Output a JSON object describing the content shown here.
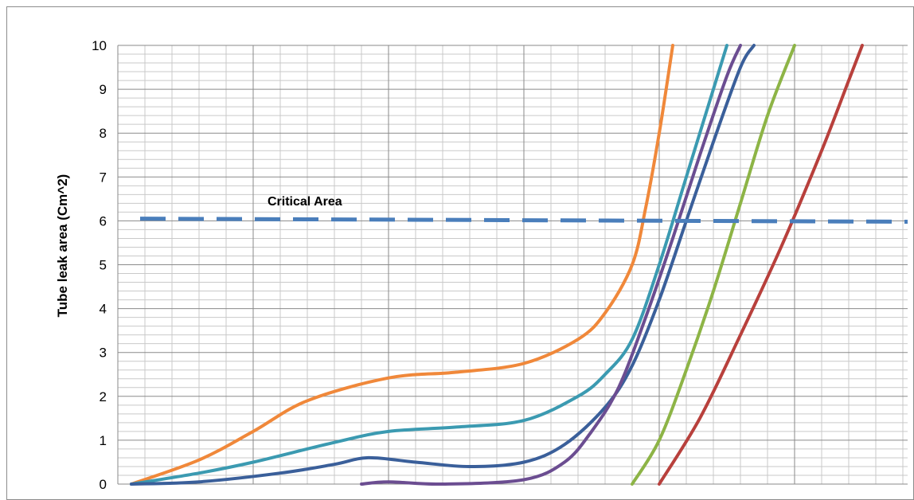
{
  "chart_data": {
    "type": "line",
    "ylabel": "Tube leak area (Cm^2)",
    "ylim": [
      0,
      10
    ],
    "yticks": [
      "0",
      "1",
      "2",
      "3",
      "4",
      "5",
      "6",
      "7",
      "8",
      "9",
      "10"
    ],
    "grid": true,
    "legend": "none",
    "critical_line": {
      "label": "Critical Area",
      "value_start": 6.05,
      "value_end": 5.98,
      "color": "#4a7ebb"
    },
    "series": [
      {
        "color": "#f0883a",
        "points": [
          [
            0.1,
            0.0
          ],
          [
            0.6,
            0.55
          ],
          [
            1.0,
            1.2
          ],
          [
            1.4,
            1.9
          ],
          [
            2.0,
            2.42
          ],
          [
            2.5,
            2.55
          ],
          [
            3.0,
            2.75
          ],
          [
            3.4,
            3.3
          ],
          [
            3.6,
            3.9
          ],
          [
            3.8,
            5.0
          ],
          [
            3.9,
            6.3
          ],
          [
            4.0,
            8.0
          ],
          [
            4.1,
            10.0
          ]
        ]
      },
      {
        "color": "#3b9ab1",
        "points": [
          [
            0.1,
            0.0
          ],
          [
            0.6,
            0.25
          ],
          [
            1.0,
            0.5
          ],
          [
            1.6,
            0.95
          ],
          [
            2.0,
            1.2
          ],
          [
            2.5,
            1.3
          ],
          [
            3.0,
            1.45
          ],
          [
            3.4,
            2.0
          ],
          [
            3.6,
            2.5
          ],
          [
            3.8,
            3.3
          ],
          [
            4.0,
            5.0
          ],
          [
            4.2,
            7.0
          ],
          [
            4.4,
            9.0
          ],
          [
            4.5,
            10.0
          ]
        ]
      },
      {
        "color": "#3a5f9a",
        "points": [
          [
            0.1,
            0.0
          ],
          [
            0.6,
            0.05
          ],
          [
            1.2,
            0.25
          ],
          [
            1.6,
            0.45
          ],
          [
            1.85,
            0.6
          ],
          [
            2.2,
            0.5
          ],
          [
            2.6,
            0.4
          ],
          [
            3.0,
            0.5
          ],
          [
            3.3,
            0.9
          ],
          [
            3.6,
            1.75
          ],
          [
            3.8,
            2.7
          ],
          [
            4.0,
            4.2
          ],
          [
            4.2,
            6.0
          ],
          [
            4.4,
            7.8
          ],
          [
            4.6,
            9.5
          ],
          [
            4.7,
            10.0
          ]
        ]
      },
      {
        "color": "#6b4d91",
        "points": [
          [
            1.8,
            0.0
          ],
          [
            2.0,
            0.05
          ],
          [
            2.4,
            0.0
          ],
          [
            3.0,
            0.1
          ],
          [
            3.3,
            0.5
          ],
          [
            3.5,
            1.2
          ],
          [
            3.7,
            2.2
          ],
          [
            3.9,
            3.8
          ],
          [
            4.1,
            5.6
          ],
          [
            4.3,
            7.5
          ],
          [
            4.5,
            9.3
          ],
          [
            4.6,
            10.0
          ]
        ]
      },
      {
        "color": "#8db446",
        "points": [
          [
            3.8,
            0.0
          ],
          [
            4.0,
            1.0
          ],
          [
            4.2,
            2.6
          ],
          [
            4.4,
            4.4
          ],
          [
            4.6,
            6.4
          ],
          [
            4.8,
            8.4
          ],
          [
            5.0,
            10.0
          ]
        ]
      },
      {
        "color": "#b8403c",
        "points": [
          [
            4.0,
            0.0
          ],
          [
            4.3,
            1.5
          ],
          [
            4.6,
            3.4
          ],
          [
            4.9,
            5.4
          ],
          [
            5.2,
            7.6
          ],
          [
            5.4,
            9.2
          ],
          [
            5.5,
            10.0
          ]
        ]
      }
    ]
  }
}
